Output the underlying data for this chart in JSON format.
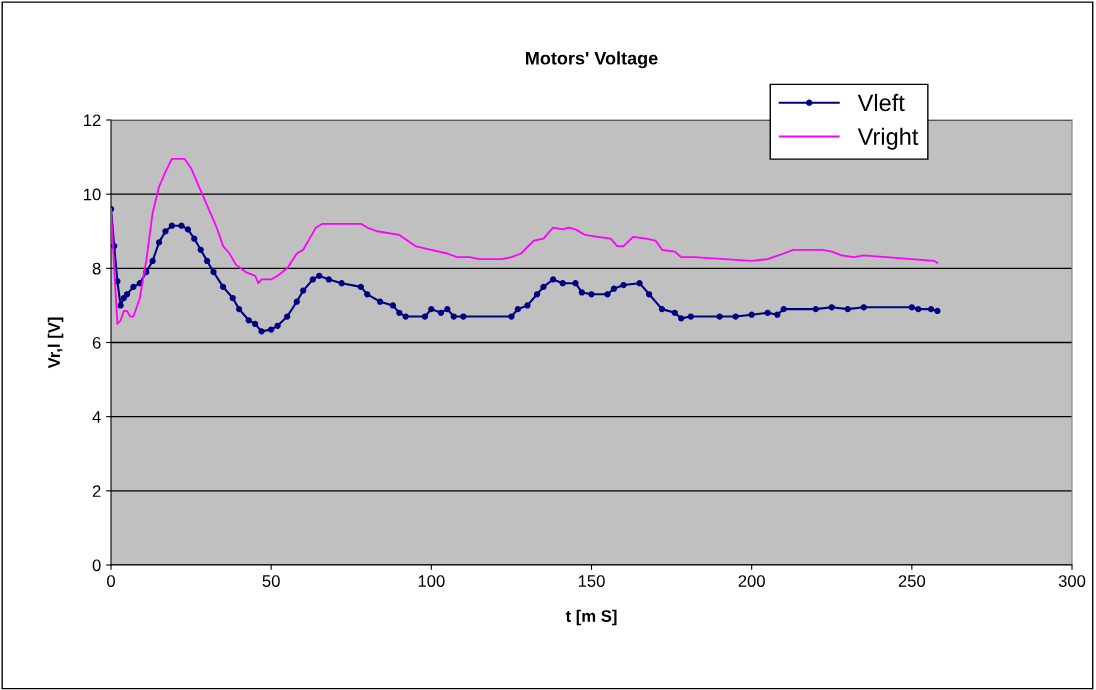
{
  "chart_data": {
    "type": "line",
    "title": "Motors' Voltage",
    "xlabel": "t [m S]",
    "ylabel": "Vr,l [V]",
    "xlim": [
      0,
      300
    ],
    "xticks": [
      0,
      50,
      100,
      150,
      200,
      250,
      300
    ],
    "ylim": [
      0,
      12
    ],
    "yticks": [
      0,
      2,
      4,
      6,
      8,
      10,
      12
    ],
    "grid": "y",
    "legend": "top right",
    "series": [
      {
        "name": "Vleft",
        "color": "#000080",
        "marker": "circle",
        "x": [
          0,
          1,
          2,
          3,
          4,
          5,
          7,
          9,
          11,
          13,
          15,
          17,
          19,
          22,
          24,
          26,
          28,
          30,
          32,
          35,
          38,
          40,
          43,
          45,
          47,
          50,
          52,
          55,
          58,
          60,
          63,
          65,
          68,
          72,
          78,
          80,
          84,
          88,
          90,
          92,
          98,
          100,
          103,
          105,
          107,
          110,
          125,
          127,
          130,
          133,
          135,
          138,
          141,
          145,
          147,
          150,
          155,
          157,
          160,
          165,
          168,
          172,
          176,
          178,
          181,
          190,
          195,
          200,
          205,
          208,
          210,
          220,
          225,
          230,
          235,
          250,
          252,
          256,
          258
        ],
        "values": [
          9.6,
          8.6,
          7.65,
          7.0,
          7.2,
          7.3,
          7.5,
          7.6,
          7.9,
          8.2,
          8.7,
          9.0,
          9.15,
          9.15,
          9.05,
          8.8,
          8.5,
          8.2,
          7.9,
          7.5,
          7.2,
          6.9,
          6.6,
          6.5,
          6.3,
          6.35,
          6.45,
          6.7,
          7.1,
          7.4,
          7.7,
          7.8,
          7.7,
          7.6,
          7.5,
          7.3,
          7.1,
          7.0,
          6.8,
          6.7,
          6.7,
          6.9,
          6.8,
          6.9,
          6.7,
          6.7,
          6.7,
          6.9,
          7.0,
          7.3,
          7.5,
          7.7,
          7.6,
          7.6,
          7.35,
          7.3,
          7.3,
          7.45,
          7.55,
          7.6,
          7.3,
          6.9,
          6.8,
          6.65,
          6.7,
          6.7,
          6.7,
          6.75,
          6.8,
          6.75,
          6.9,
          6.9,
          6.95,
          6.9,
          6.95,
          6.95,
          6.9,
          6.9,
          6.85
        ]
      },
      {
        "name": "Vright",
        "color": "#ff00ff",
        "marker": "none",
        "x": [
          0,
          1,
          2,
          3,
          4,
          5,
          6,
          7,
          9,
          11,
          13,
          15,
          17,
          19,
          23,
          25,
          27,
          30,
          33,
          35,
          37,
          39,
          42,
          45,
          46,
          47,
          50,
          52,
          55,
          58,
          60,
          62,
          64,
          66,
          78,
          80,
          83,
          90,
          95,
          100,
          105,
          108,
          112,
          115,
          122,
          125,
          128,
          132,
          135,
          138,
          141,
          143,
          145,
          148,
          152,
          156,
          158,
          160,
          163,
          167,
          170,
          172,
          176,
          178,
          182,
          200,
          205,
          210,
          213,
          222,
          225,
          228,
          232,
          235,
          250,
          257,
          258
        ],
        "values": [
          9.6,
          8.0,
          6.5,
          6.6,
          6.85,
          6.85,
          6.7,
          6.7,
          7.2,
          8.2,
          9.5,
          10.2,
          10.6,
          10.95,
          10.95,
          10.7,
          10.3,
          9.7,
          9.1,
          8.6,
          8.4,
          8.1,
          7.9,
          7.8,
          7.6,
          7.7,
          7.7,
          7.8,
          8.0,
          8.4,
          8.5,
          8.8,
          9.1,
          9.2,
          9.2,
          9.1,
          9.0,
          8.9,
          8.6,
          8.5,
          8.4,
          8.3,
          8.3,
          8.25,
          8.25,
          8.3,
          8.4,
          8.75,
          8.8,
          9.1,
          9.05,
          9.1,
          9.05,
          8.9,
          8.85,
          8.8,
          8.6,
          8.6,
          8.85,
          8.8,
          8.75,
          8.5,
          8.45,
          8.3,
          8.3,
          8.2,
          8.25,
          8.4,
          8.5,
          8.5,
          8.45,
          8.35,
          8.3,
          8.35,
          8.25,
          8.2,
          8.15
        ]
      }
    ]
  }
}
